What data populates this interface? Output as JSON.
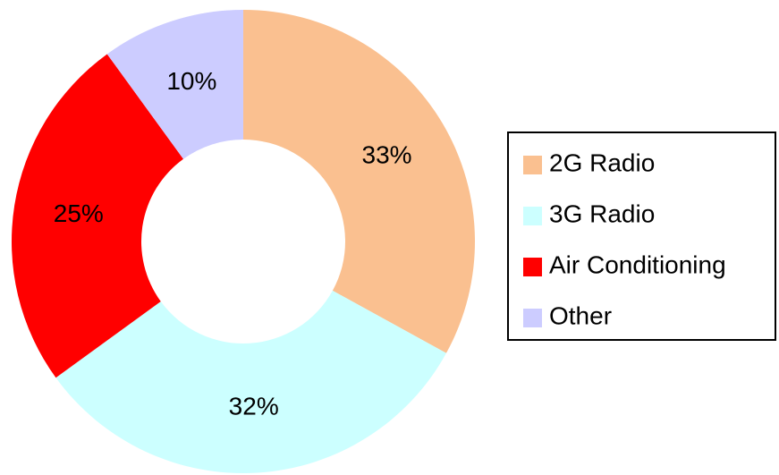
{
  "chart_data": {
    "type": "donut",
    "categories": [
      "2G Radio",
      "3G Radio",
      "Air Conditioning",
      "Other"
    ],
    "values": [
      33,
      32,
      25,
      10
    ],
    "value_labels": [
      "33%",
      "32%",
      "25%",
      "10%"
    ],
    "colors": [
      "#fac090",
      "#ccffff",
      "#ff0000",
      "#ccccff"
    ],
    "legend": "right"
  }
}
